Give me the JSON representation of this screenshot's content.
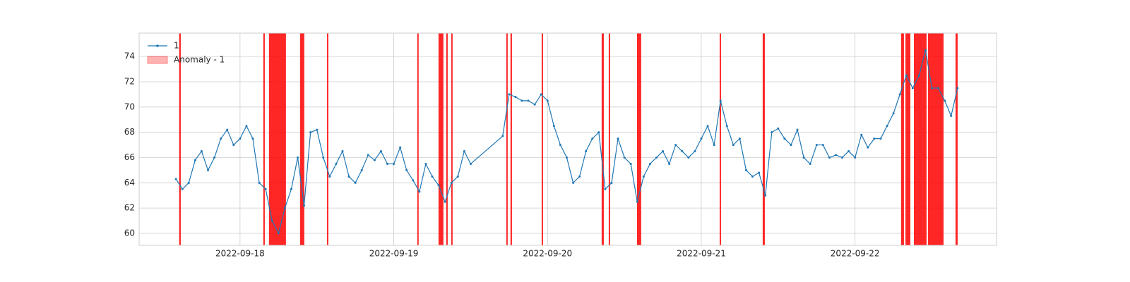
{
  "chart_data": {
    "type": "line",
    "x": [
      "2022-09-17 14:00",
      "2022-09-17 15:00",
      "2022-09-17 16:00",
      "2022-09-17 17:00",
      "2022-09-17 18:00",
      "2022-09-17 19:00",
      "2022-09-17 20:00",
      "2022-09-17 21:00",
      "2022-09-17 22:00",
      "2022-09-17 23:00",
      "2022-09-18 00:00",
      "2022-09-18 01:00",
      "2022-09-18 02:00",
      "2022-09-18 03:00",
      "2022-09-18 04:00",
      "2022-09-18 05:00",
      "2022-09-18 06:00",
      "2022-09-18 07:00",
      "2022-09-18 08:00",
      "2022-09-18 09:00",
      "2022-09-18 10:00",
      "2022-09-18 11:00",
      "2022-09-18 12:00",
      "2022-09-18 13:00",
      "2022-09-18 14:00",
      "2022-09-18 15:00",
      "2022-09-18 16:00",
      "2022-09-18 17:00",
      "2022-09-18 18:00",
      "2022-09-18 19:00",
      "2022-09-18 20:00",
      "2022-09-18 21:00",
      "2022-09-18 22:00",
      "2022-09-18 23:00",
      "2022-09-19 00:00",
      "2022-09-19 01:00",
      "2022-09-19 02:00",
      "2022-09-19 03:00",
      "2022-09-19 04:00",
      "2022-09-19 05:00",
      "2022-09-19 06:00",
      "2022-09-19 07:00",
      "2022-09-19 08:00",
      "2022-09-19 09:00",
      "2022-09-19 10:00",
      "2022-09-19 11:00",
      "2022-09-19 12:00",
      "2022-09-19 17:00",
      "2022-09-19 18:00",
      "2022-09-19 19:00",
      "2022-09-19 20:00",
      "2022-09-19 21:00",
      "2022-09-19 22:00",
      "2022-09-19 23:00",
      "2022-09-20 00:00",
      "2022-09-20 01:00",
      "2022-09-20 02:00",
      "2022-09-20 03:00",
      "2022-09-20 04:00",
      "2022-09-20 05:00",
      "2022-09-20 06:00",
      "2022-09-20 07:00",
      "2022-09-20 08:00",
      "2022-09-20 09:00",
      "2022-09-20 10:00",
      "2022-09-20 11:00",
      "2022-09-20 12:00",
      "2022-09-20 13:00",
      "2022-09-20 14:00",
      "2022-09-20 15:00",
      "2022-09-20 16:00",
      "2022-09-20 17:00",
      "2022-09-20 18:00",
      "2022-09-20 19:00",
      "2022-09-20 20:00",
      "2022-09-20 21:00",
      "2022-09-20 22:00",
      "2022-09-20 23:00",
      "2022-09-21 00:00",
      "2022-09-21 01:00",
      "2022-09-21 02:00",
      "2022-09-21 03:00",
      "2022-09-21 04:00",
      "2022-09-21 05:00",
      "2022-09-21 06:00",
      "2022-09-21 07:00",
      "2022-09-21 08:00",
      "2022-09-21 09:00",
      "2022-09-21 10:00",
      "2022-09-21 11:00",
      "2022-09-21 12:00",
      "2022-09-21 13:00",
      "2022-09-21 14:00",
      "2022-09-21 15:00",
      "2022-09-21 16:00",
      "2022-09-21 17:00",
      "2022-09-21 18:00",
      "2022-09-21 19:00",
      "2022-09-21 20:00",
      "2022-09-21 21:00",
      "2022-09-21 22:00",
      "2022-09-21 23:00",
      "2022-09-22 00:00",
      "2022-09-22 01:00",
      "2022-09-22 02:00",
      "2022-09-22 03:00",
      "2022-09-22 04:00",
      "2022-09-22 05:00",
      "2022-09-22 06:00",
      "2022-09-22 07:00",
      "2022-09-22 08:00",
      "2022-09-22 09:00",
      "2022-09-22 10:00",
      "2022-09-22 11:00",
      "2022-09-22 12:00",
      "2022-09-22 13:00",
      "2022-09-22 14:00",
      "2022-09-22 15:00",
      "2022-09-22 16:00"
    ],
    "series": [
      {
        "name": "1",
        "color": "#1f77b4",
        "values": [
          64.3,
          63.5,
          64,
          65.8,
          66.5,
          65,
          66,
          67.5,
          68.2,
          67,
          67.5,
          68.5,
          67.5,
          64,
          63.5,
          61,
          60,
          62,
          63.5,
          66,
          62.2,
          68,
          68.2,
          66,
          64.5,
          65.5,
          66.5,
          64.5,
          64,
          65,
          66.2,
          65.8,
          66.5,
          65.5,
          65.5,
          66.8,
          65,
          64.2,
          63.3,
          65.5,
          64.5,
          63.8,
          62.5,
          64,
          64.5,
          66.5,
          65.5,
          67.7,
          71,
          70.8,
          70.5,
          70.5,
          70.2,
          71,
          70.5,
          68.5,
          67,
          66,
          64,
          64.5,
          66.5,
          67.5,
          68,
          63.5,
          64,
          67.5,
          66,
          65.5,
          62.5,
          64.5,
          65.5,
          66,
          66.5,
          65.5,
          67,
          66.5,
          66,
          66.5,
          67.5,
          68.5,
          67,
          70.5,
          68.5,
          67,
          67.5,
          65,
          64.5,
          64.8,
          63,
          68,
          68.3,
          67.5,
          67,
          68.2,
          66,
          65.5,
          67,
          67,
          66,
          66.2,
          66,
          66.5,
          66,
          67.8,
          66.8,
          67.5,
          67.5,
          68.5,
          69.5,
          71,
          72.5,
          71.5,
          72.5,
          74.5,
          71.5,
          71.5,
          70.5,
          69.3,
          71.5
        ]
      }
    ],
    "anomalies": {
      "label": "Anomaly - 1",
      "color": "#ff0000",
      "spans": [
        [
          "2022-09-17 14:30",
          "2022-09-17 14:45"
        ],
        [
          "2022-09-18 03:38",
          "2022-09-18 03:52"
        ],
        [
          "2022-09-18 04:31",
          "2022-09-18 07:10"
        ],
        [
          "2022-09-18 09:22",
          "2022-09-18 10:02"
        ],
        [
          "2022-09-18 13:34",
          "2022-09-18 13:47"
        ],
        [
          "2022-09-19 03:40",
          "2022-09-19 03:53"
        ],
        [
          "2022-09-19 06:59",
          "2022-09-19 07:45"
        ],
        [
          "2022-09-19 08:11",
          "2022-09-19 08:25"
        ],
        [
          "2022-09-19 08:58",
          "2022-09-19 09:11"
        ],
        [
          "2022-09-19 17:34",
          "2022-09-19 17:47"
        ],
        [
          "2022-09-19 18:13",
          "2022-09-19 18:27"
        ],
        [
          "2022-09-19 23:05",
          "2022-09-19 23:18"
        ],
        [
          "2022-09-20 08:27",
          "2022-09-20 08:47"
        ],
        [
          "2022-09-20 09:33",
          "2022-09-20 09:46"
        ],
        [
          "2022-09-20 13:58",
          "2022-09-20 14:37"
        ],
        [
          "2022-09-21 02:52",
          "2022-09-21 03:05"
        ],
        [
          "2022-09-21 09:35",
          "2022-09-21 09:55"
        ],
        [
          "2022-09-22 07:11",
          "2022-09-22 07:38"
        ],
        [
          "2022-09-22 07:52",
          "2022-09-22 08:38"
        ],
        [
          "2022-09-22 09:11",
          "2022-09-22 11:10"
        ],
        [
          "2022-09-22 11:23",
          "2022-09-22 13:49"
        ],
        [
          "2022-09-22 15:41",
          "2022-09-22 16:01"
        ]
      ]
    },
    "xlim": [
      "2022-09-17 08:15",
      "2022-09-22 22:05"
    ],
    "xticks": [
      "2022-09-18",
      "2022-09-19",
      "2022-09-20",
      "2022-09-21",
      "2022-09-22"
    ],
    "ylim": [
      59.05,
      75.85
    ],
    "yticks": [
      60,
      62,
      64,
      66,
      68,
      70,
      72,
      74
    ],
    "grid": true,
    "legend": "upper left"
  }
}
